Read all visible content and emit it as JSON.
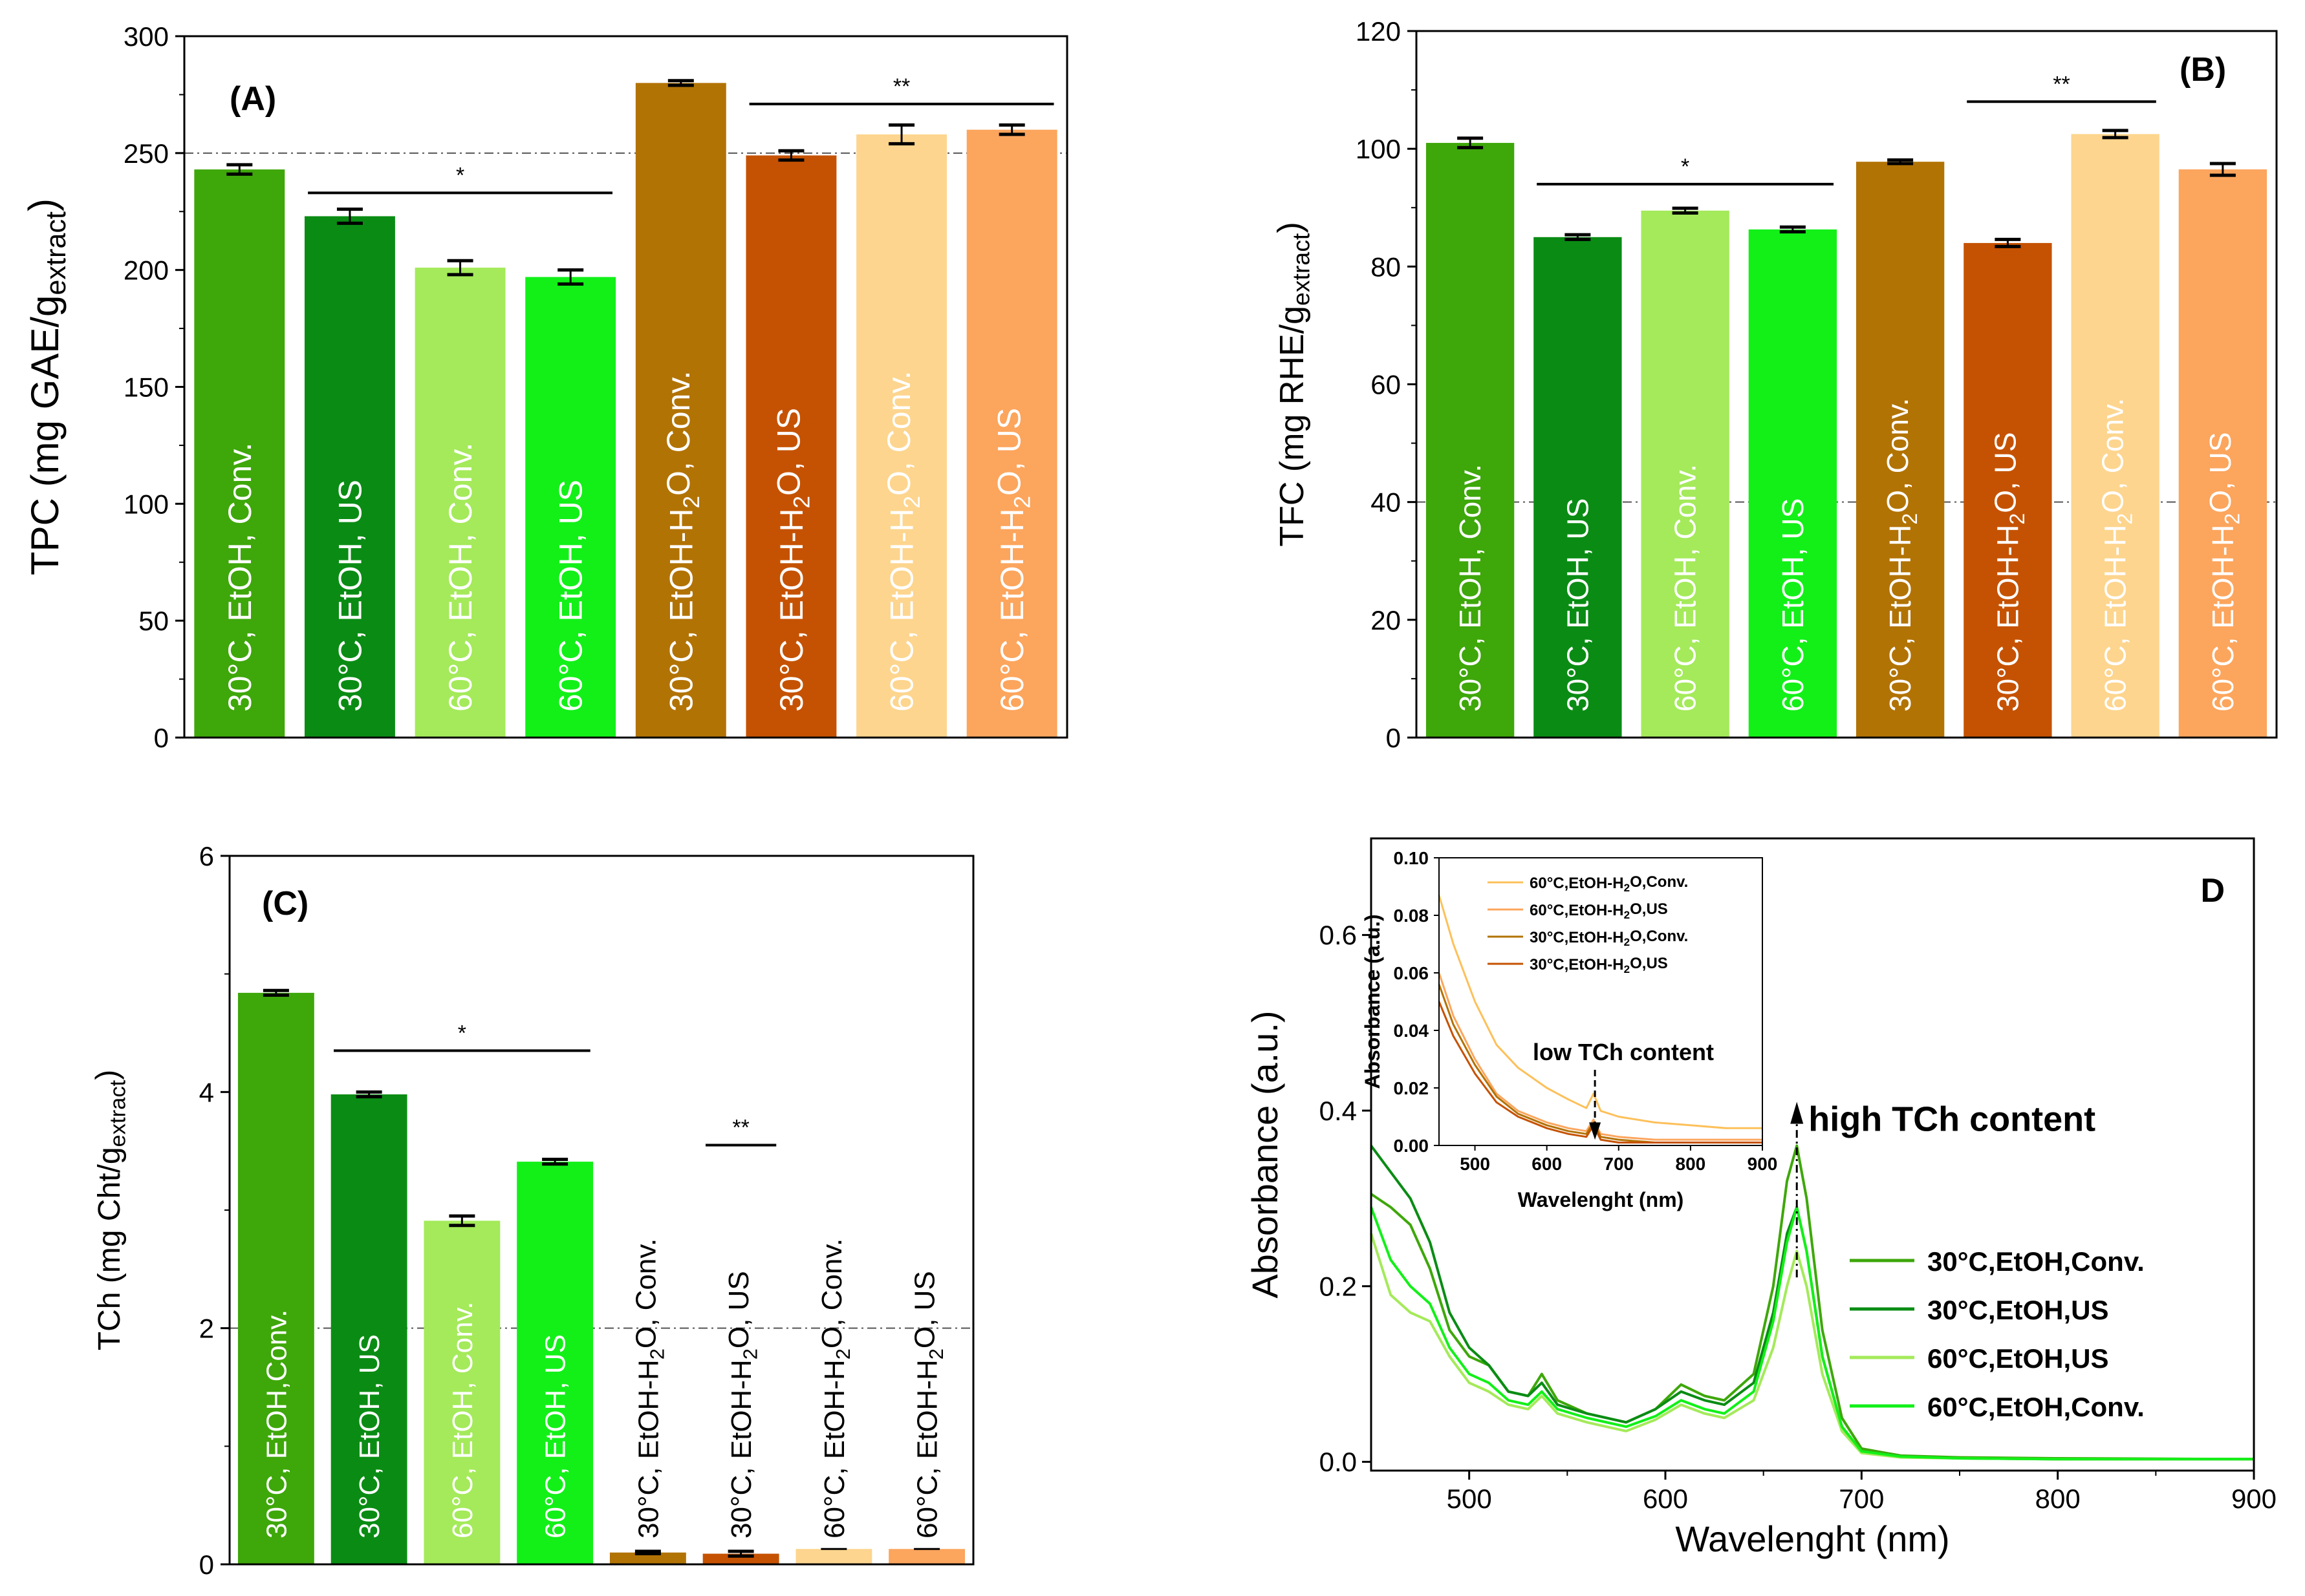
{
  "chart_data": [
    {
      "type": "bar",
      "panel_label": "(A)",
      "ylabel": "TPC (mg GAE/g",
      "ylabel_sub": "extract",
      "ylabel_end": ")",
      "ylim": [
        0,
        300
      ],
      "yticks": [
        0,
        50,
        100,
        150,
        200,
        250,
        300
      ],
      "refline": 250,
      "categories": [
        "30°C, EtOH, Conv.",
        "30°C, EtOH, US",
        "60°C, EtOH, Conv.",
        "60°C, EtOH, US",
        "30°C, EtOH-H2O, Conv.",
        "30°C, EtOH-H2O, US",
        "60°C, EtOH-H2O, Conv.",
        "60°C, EtOH-H2O, US"
      ],
      "values": [
        243,
        223,
        201,
        197,
        280,
        249,
        258,
        260
      ],
      "errors": [
        2,
        3,
        3,
        3,
        1,
        2,
        4,
        2
      ],
      "colors": [
        "#3ea70a",
        "#0a8c14",
        "#a4ea5a",
        "#12f018",
        "#b27305",
        "#c55202",
        "#fdd58e",
        "#fca55d"
      ],
      "label_color": "#ffffff",
      "brackets": [
        {
          "from": 1,
          "to": 3,
          "y": 233,
          "label": "*"
        },
        {
          "from": 5,
          "to": 7,
          "y": 271,
          "label": "**"
        }
      ]
    },
    {
      "type": "bar",
      "panel_label": "(B)",
      "ylabel": "TFC (mg RHE/g",
      "ylabel_sub": "extract",
      "ylabel_end": ")",
      "ylim": [
        0,
        120
      ],
      "yticks": [
        0,
        20,
        40,
        60,
        80,
        100,
        120
      ],
      "refline": 40,
      "categories": [
        "30°C, EtOH, Conv.",
        "30°C, EtOH, US",
        "60°C, EtOH, Conv.",
        "60°C, EtOH, US",
        "30°C, EtOH-H2O, Conv.",
        "30°C, EtOH-H2O, US",
        "60°C, EtOH-H2O, Conv.",
        "60°C, EtOH-H2O, US"
      ],
      "values": [
        101,
        85,
        89.5,
        86.3,
        97.8,
        84,
        102.5,
        96.5
      ],
      "errors": [
        0.8,
        0.4,
        0.4,
        0.4,
        0.3,
        0.6,
        0.6,
        1
      ],
      "colors": [
        "#3ea70a",
        "#0a8c14",
        "#a4ea5a",
        "#12f018",
        "#b27305",
        "#c55202",
        "#fdd58e",
        "#fca55d"
      ],
      "label_color": "#ffffff",
      "brackets": [
        {
          "from": 1,
          "to": 3,
          "y": 94,
          "label": "*"
        },
        {
          "from": 5,
          "to": 6,
          "y": 108,
          "label": "**"
        }
      ]
    },
    {
      "type": "bar",
      "panel_label": "(C)",
      "ylabel": "TCh (mg Cht/g",
      "ylabel_sub": "extract",
      "ylabel_end": ")",
      "ylim": [
        0,
        6
      ],
      "yticks": [
        0,
        2,
        4,
        6
      ],
      "refline": 2,
      "categories": [
        "30°C, EtOH,Conv.",
        "30°C, EtOH, US",
        "60°C, EtOH, Conv.",
        "60°C, EtOH, US",
        "30°C, EtOH-H2O, Conv.",
        "30°C, EtOH-H2O, US",
        "60°C, EtOH-H2O, Conv.",
        "60°C, EtOH-H2O, US"
      ],
      "values": [
        4.84,
        3.98,
        2.91,
        3.41,
        0.1,
        0.09,
        0.13,
        0.13
      ],
      "errors": [
        0.02,
        0.02,
        0.04,
        0.02,
        0.01,
        0.02,
        0,
        0
      ],
      "colors": [
        "#3ea70a",
        "#0a8c14",
        "#a4ea5a",
        "#12f018",
        "#b27305",
        "#c55202",
        "#fdd58e",
        "#fca55d"
      ],
      "label_colors": [
        "#ffffff",
        "#ffffff",
        "#ffffff",
        "#ffffff",
        "#000000",
        "#000000",
        "#000000",
        "#000000"
      ],
      "brackets": [
        {
          "from": 1,
          "to": 3,
          "y": 4.35,
          "label": "*"
        },
        {
          "from": 5,
          "to": 5,
          "y": 3.55,
          "label": "**"
        }
      ]
    },
    {
      "type": "line",
      "panel_label": "D",
      "xlabel": "Wavelenght (nm)",
      "ylabel": "Absorbance (a.u.)",
      "xlim": [
        450,
        900
      ],
      "ylim": [
        -0.01,
        0.71
      ],
      "xticks": [
        500,
        600,
        700,
        800,
        900
      ],
      "yticks": [
        0.0,
        0.2,
        0.4,
        0.6
      ],
      "annotation": "high TCh content",
      "series": [
        {
          "name": "30°C,EtOH,Conv.",
          "color": "#3ea70a",
          "x": [
            450,
            460,
            470,
            480,
            490,
            500,
            510,
            520,
            530,
            537,
            545,
            560,
            580,
            595,
            608,
            620,
            630,
            645,
            655,
            662,
            667,
            672,
            680,
            690,
            700,
            720,
            750,
            800,
            900
          ],
          "y": [
            0.305,
            0.29,
            0.27,
            0.22,
            0.15,
            0.12,
            0.11,
            0.08,
            0.075,
            0.1,
            0.07,
            0.055,
            0.045,
            0.06,
            0.088,
            0.075,
            0.07,
            0.1,
            0.2,
            0.32,
            0.36,
            0.3,
            0.15,
            0.05,
            0.015,
            0.007,
            0.005,
            0.004,
            0.003
          ]
        },
        {
          "name": "30°C,EtOH,US",
          "color": "#0a8c14",
          "x": [
            450,
            460,
            470,
            480,
            490,
            500,
            510,
            520,
            530,
            537,
            545,
            560,
            580,
            595,
            608,
            620,
            630,
            645,
            655,
            662,
            667,
            672,
            680,
            690,
            700,
            720,
            750,
            800,
            900
          ],
          "y": [
            0.36,
            0.33,
            0.3,
            0.25,
            0.17,
            0.13,
            0.11,
            0.08,
            0.075,
            0.09,
            0.065,
            0.055,
            0.045,
            0.06,
            0.08,
            0.07,
            0.065,
            0.09,
            0.17,
            0.26,
            0.29,
            0.24,
            0.12,
            0.04,
            0.012,
            0.006,
            0.004,
            0.003,
            0.003
          ]
        },
        {
          "name": "60°C,EtOH,US",
          "color": "#a4ea5a",
          "x": [
            450,
            460,
            470,
            480,
            490,
            500,
            510,
            520,
            530,
            537,
            545,
            560,
            580,
            595,
            608,
            620,
            630,
            645,
            655,
            662,
            667,
            672,
            680,
            690,
            700,
            720,
            750,
            800,
            900
          ],
          "y": [
            0.26,
            0.19,
            0.17,
            0.16,
            0.12,
            0.09,
            0.08,
            0.065,
            0.06,
            0.075,
            0.055,
            0.045,
            0.035,
            0.048,
            0.065,
            0.055,
            0.05,
            0.07,
            0.13,
            0.2,
            0.24,
            0.2,
            0.1,
            0.035,
            0.01,
            0.005,
            0.004,
            0.003,
            0.003
          ]
        },
        {
          "name": "60°C,EtOH,Conv.",
          "color": "#12f018",
          "x": [
            450,
            460,
            470,
            480,
            490,
            500,
            510,
            520,
            530,
            537,
            545,
            560,
            580,
            595,
            608,
            620,
            630,
            645,
            655,
            662,
            667,
            672,
            680,
            690,
            700,
            720,
            750,
            800,
            900
          ],
          "y": [
            0.29,
            0.23,
            0.2,
            0.18,
            0.13,
            0.1,
            0.09,
            0.07,
            0.065,
            0.08,
            0.06,
            0.05,
            0.04,
            0.052,
            0.07,
            0.06,
            0.055,
            0.08,
            0.16,
            0.25,
            0.29,
            0.24,
            0.12,
            0.04,
            0.012,
            0.006,
            0.004,
            0.003,
            0.003
          ]
        }
      ],
      "inset": {
        "xlabel": "Wavelenght (nm)",
        "ylabel": "Absorbance (a.u.)",
        "xlim": [
          450,
          900
        ],
        "ylim": [
          0,
          0.1
        ],
        "xticks": [
          500,
          600,
          700,
          800,
          900
        ],
        "yticks": [
          0.0,
          0.02,
          0.04,
          0.06,
          0.08,
          0.1
        ],
        "ytick_labels": [
          "0.00",
          "0.02",
          "0.04",
          "0.06",
          "0.08",
          "0.10"
        ],
        "annotation": "low TCh content",
        "series": [
          {
            "name": "60°C,EtOH-H2O,Conv.",
            "color": "#fdc05a",
            "x": [
              450,
              470,
              500,
              530,
              560,
              600,
              630,
              655,
              665,
              675,
              700,
              750,
              800,
              850,
              900
            ],
            "y": [
              0.087,
              0.07,
              0.05,
              0.035,
              0.027,
              0.02,
              0.016,
              0.013,
              0.018,
              0.012,
              0.01,
              0.008,
              0.007,
              0.006,
              0.006
            ]
          },
          {
            "name": "60°C,EtOH-H2O,US",
            "color": "#fca55d",
            "x": [
              450,
              470,
              500,
              530,
              560,
              600,
              630,
              655,
              665,
              675,
              700,
              750,
              800,
              850,
              900
            ],
            "y": [
              0.06,
              0.045,
              0.03,
              0.018,
              0.012,
              0.008,
              0.006,
              0.005,
              0.009,
              0.004,
              0.003,
              0.002,
              0.002,
              0.002,
              0.002
            ]
          },
          {
            "name": "30°C,EtOH-H2O,Conv.",
            "color": "#b27305",
            "x": [
              450,
              470,
              500,
              530,
              560,
              600,
              630,
              655,
              665,
              675,
              700,
              750,
              800,
              850,
              900
            ],
            "y": [
              0.056,
              0.042,
              0.028,
              0.017,
              0.011,
              0.007,
              0.005,
              0.004,
              0.008,
              0.003,
              0.002,
              0.001,
              0.001,
              0.001,
              0.001
            ]
          },
          {
            "name": "30°C,EtOH-H2O,US",
            "color": "#c55202",
            "x": [
              450,
              470,
              500,
              530,
              560,
              600,
              630,
              655,
              665,
              675,
              700,
              750,
              800,
              850,
              900
            ],
            "y": [
              0.05,
              0.038,
              0.025,
              0.015,
              0.01,
              0.006,
              0.004,
              0.003,
              0.007,
              0.002,
              0.001,
              0.001,
              0.001,
              0.001,
              0.001
            ]
          }
        ]
      }
    }
  ]
}
